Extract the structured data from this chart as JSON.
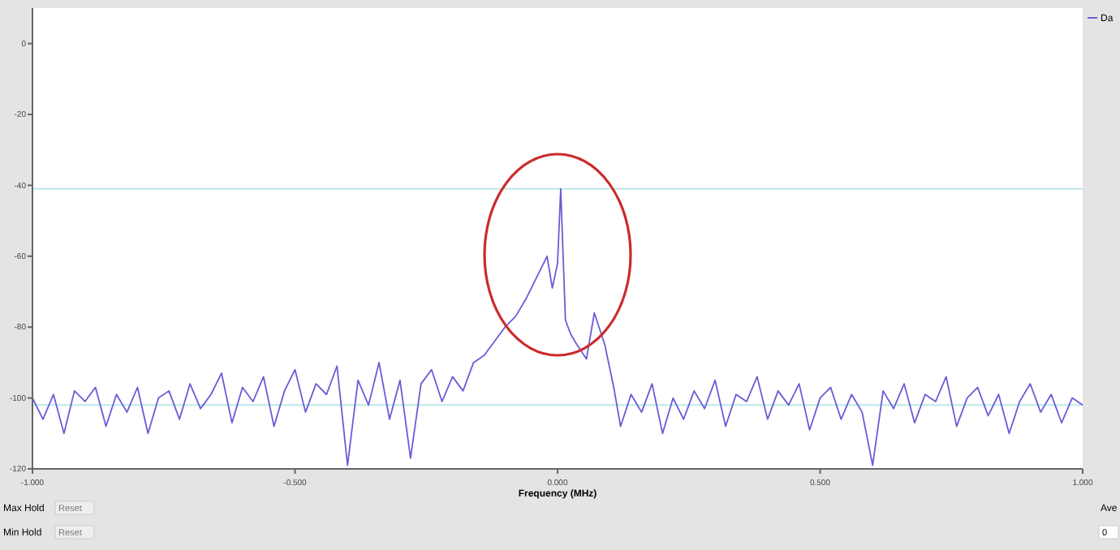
{
  "chart_data": {
    "type": "line",
    "xlabel": "Frequency (MHz)",
    "xlim": [
      -1,
      1
    ],
    "xticks": [
      {
        "value": -1,
        "label": "-1.000"
      },
      {
        "value": -0.5,
        "label": "-0.500"
      },
      {
        "value": 0,
        "label": "0.000"
      },
      {
        "value": 0.5,
        "label": "0.500"
      },
      {
        "value": 1,
        "label": "1.000"
      }
    ],
    "ylim": [
      -120,
      10
    ],
    "yticks": [
      0,
      -20,
      -40,
      -60,
      -80,
      -100,
      -120
    ],
    "grid": false,
    "legend": "top right",
    "line_style": "solid",
    "ref_lines": [
      {
        "axis": "y",
        "value": -41,
        "color": "#bfe6ec"
      },
      {
        "axis": "y",
        "value": -102,
        "color": "#bfe6ec"
      }
    ],
    "annotations": [
      "Max Hold",
      "Reset",
      "Min Hold",
      "Reset",
      "Ave",
      "0"
    ],
    "series": [
      {
        "name": "Da",
        "color": "#6b5bd6",
        "x": [
          -1,
          -0.98,
          -0.96,
          -0.94,
          -0.92,
          -0.9,
          -0.88,
          -0.86,
          -0.84,
          -0.82,
          -0.8,
          -0.78,
          -0.76,
          -0.74,
          -0.72,
          -0.7,
          -0.68,
          -0.66,
          -0.64,
          -0.62,
          -0.6,
          -0.58,
          -0.56,
          -0.54,
          -0.52,
          -0.5,
          -0.48,
          -0.46,
          -0.44,
          -0.42,
          -0.4,
          -0.38,
          -0.36,
          -0.34,
          -0.32,
          -0.3,
          -0.28,
          -0.26,
          -0.24,
          -0.22,
          -0.2,
          -0.18,
          -0.16,
          -0.14,
          -0.12,
          -0.1,
          -0.08,
          -0.06,
          -0.04,
          -0.02,
          -0.01,
          0,
          0.006,
          0.015,
          0.025,
          0.037,
          0.055,
          0.07,
          0.09,
          0.107,
          0.12,
          0.14,
          0.16,
          0.18,
          0.2,
          0.22,
          0.24,
          0.26,
          0.28,
          0.3,
          0.32,
          0.34,
          0.36,
          0.38,
          0.4,
          0.42,
          0.44,
          0.46,
          0.48,
          0.5,
          0.52,
          0.54,
          0.56,
          0.58,
          0.6,
          0.62,
          0.64,
          0.66,
          0.68,
          0.7,
          0.72,
          0.74,
          0.76,
          0.78,
          0.8,
          0.82,
          0.84,
          0.86,
          0.88,
          0.9,
          0.92,
          0.94,
          0.96,
          0.98,
          1
        ],
        "values": [
          -100,
          -106,
          -99,
          -110,
          -98,
          -101,
          -97,
          -108,
          -99,
          -104,
          -97,
          -110,
          -100,
          -98,
          -106,
          -96,
          -103,
          -99,
          -93,
          -107,
          -97,
          -101,
          -94,
          -108,
          -98,
          -92,
          -104,
          -96,
          -99,
          -91,
          -119,
          -95,
          -102,
          -90,
          -106,
          -95,
          -117,
          -96,
          -92,
          -101,
          -94,
          -98,
          -90,
          -88,
          -84,
          -80,
          -77,
          -72,
          -66,
          -60,
          -69,
          -62,
          -41,
          -78,
          -82,
          -85,
          -89,
          -76,
          -85,
          -97,
          -108,
          -99,
          -104,
          -96,
          -110,
          -100,
          -106,
          -98,
          -103,
          -95,
          -108,
          -99,
          -101,
          -94,
          -106,
          -98,
          -102,
          -96,
          -109,
          -100,
          -97,
          -106,
          -99,
          -104,
          -119,
          -98,
          -103,
          -96,
          -107,
          -99,
          -101,
          -94,
          -108,
          -100,
          -97,
          -105,
          -99,
          -110,
          -101,
          -96,
          -104,
          -99,
          -107,
          -100,
          -102
        ]
      }
    ]
  }
}
